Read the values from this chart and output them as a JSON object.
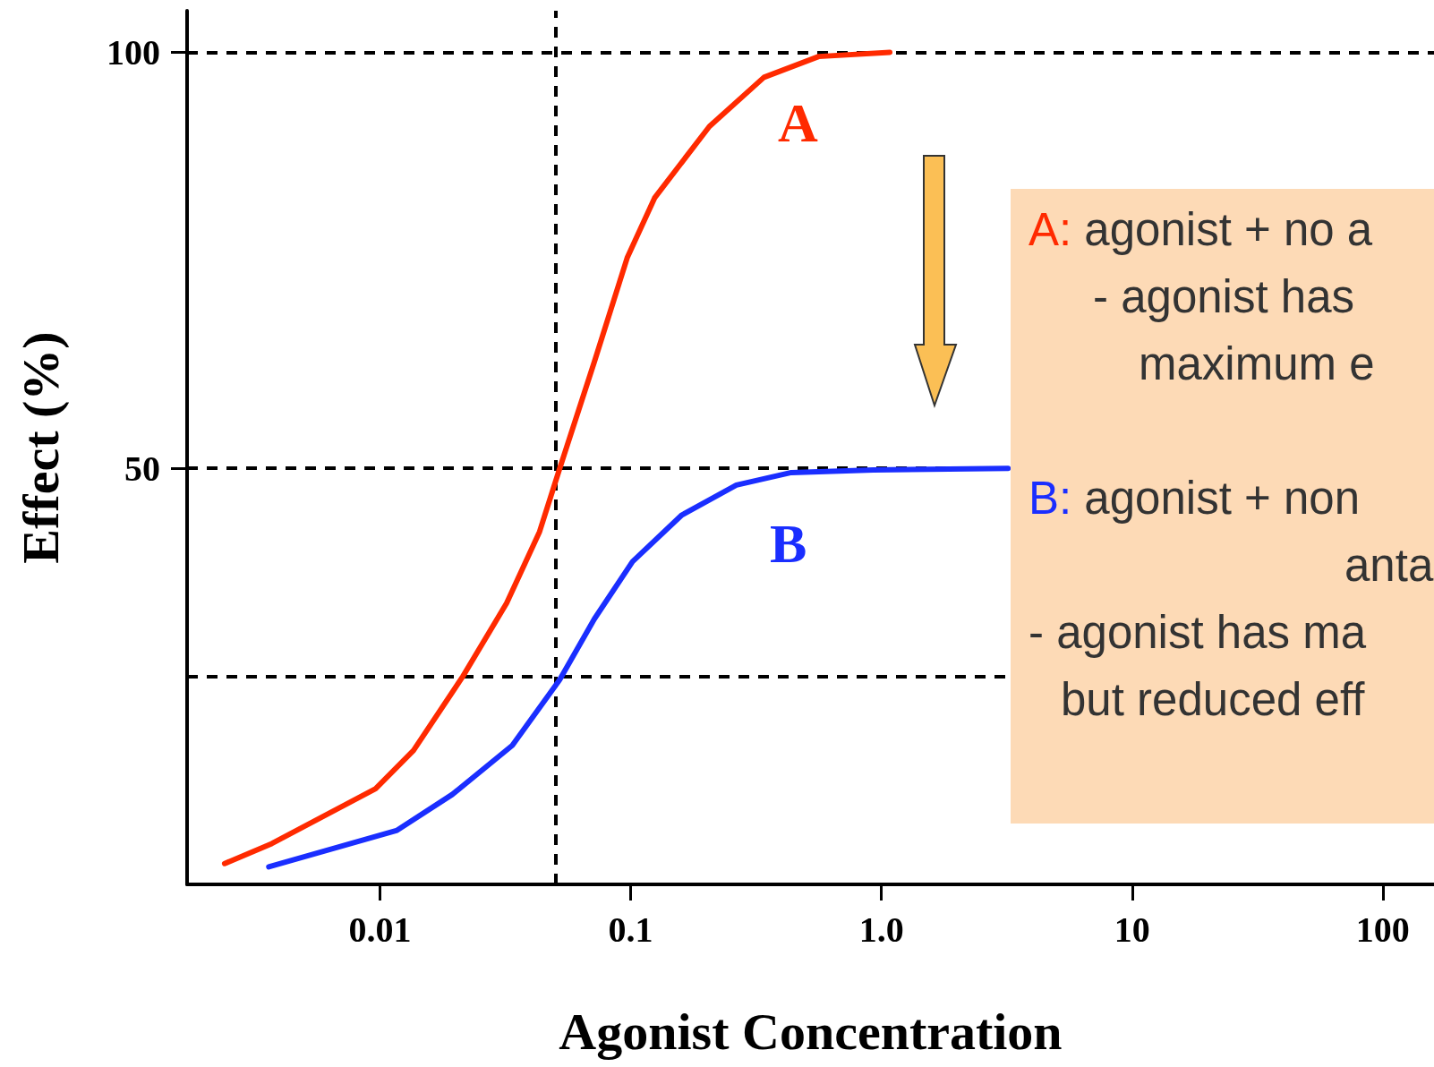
{
  "chart_data": {
    "type": "line",
    "xlabel": "Agonist Concentration",
    "ylabel": "Effect (%)",
    "log": "x",
    "xlim": [
      0.0017,
      160
    ],
    "ylim": [
      0,
      105
    ],
    "xticks": [
      0.01,
      0.1,
      {
        "value": 1,
        "label": "1.0"
      },
      10,
      100
    ],
    "yticks": [
      50,
      100
    ],
    "series": [
      {
        "color": "#ff2a00",
        "x": [
          0.0024,
          0.0037,
          0.0096,
          0.0136,
          0.0214,
          0.032,
          0.0433,
          0.0521,
          0.0716,
          0.0968,
          0.1245,
          0.206,
          0.34,
          0.562,
          1.08
        ],
        "values": [
          2.5,
          4.9,
          11.5,
          16.1,
          25,
          33.8,
          42.4,
          50,
          62.8,
          75.3,
          82.5,
          91.1,
          97,
          99.5,
          100
        ]
      },
      {
        "color": "#1a2eff",
        "x": [
          0.0036,
          0.0117,
          0.0194,
          0.0337,
          0.0521,
          0.0716,
          0.1017,
          0.16,
          0.264,
          0.437,
          0.93,
          3.2
        ],
        "values": [
          2.1,
          6.5,
          10.8,
          16.7,
          24.6,
          31.9,
          38.8,
          44.4,
          48,
          49.5,
          49.8,
          50
        ]
      }
    ],
    "ref_lines": [
      {
        "axis": "y",
        "value": 100,
        "line_style": "dashed"
      },
      {
        "axis": "y",
        "value": 50,
        "line_style": "dashed"
      },
      {
        "axis": "y",
        "value": 25,
        "line_style": "dashed"
      },
      {
        "axis": "x",
        "value": 0.052,
        "line_style": "dashed"
      }
    ],
    "annotations": [
      "A",
      "B",
      "A: agonist + no a",
      "- agonist has",
      "maximum e",
      "B: agonist + non",
      "anta",
      "- agonist has ma",
      "but reduced eff"
    ],
    "marker": "none",
    "line_style": "solid",
    "grid": false
  }
}
